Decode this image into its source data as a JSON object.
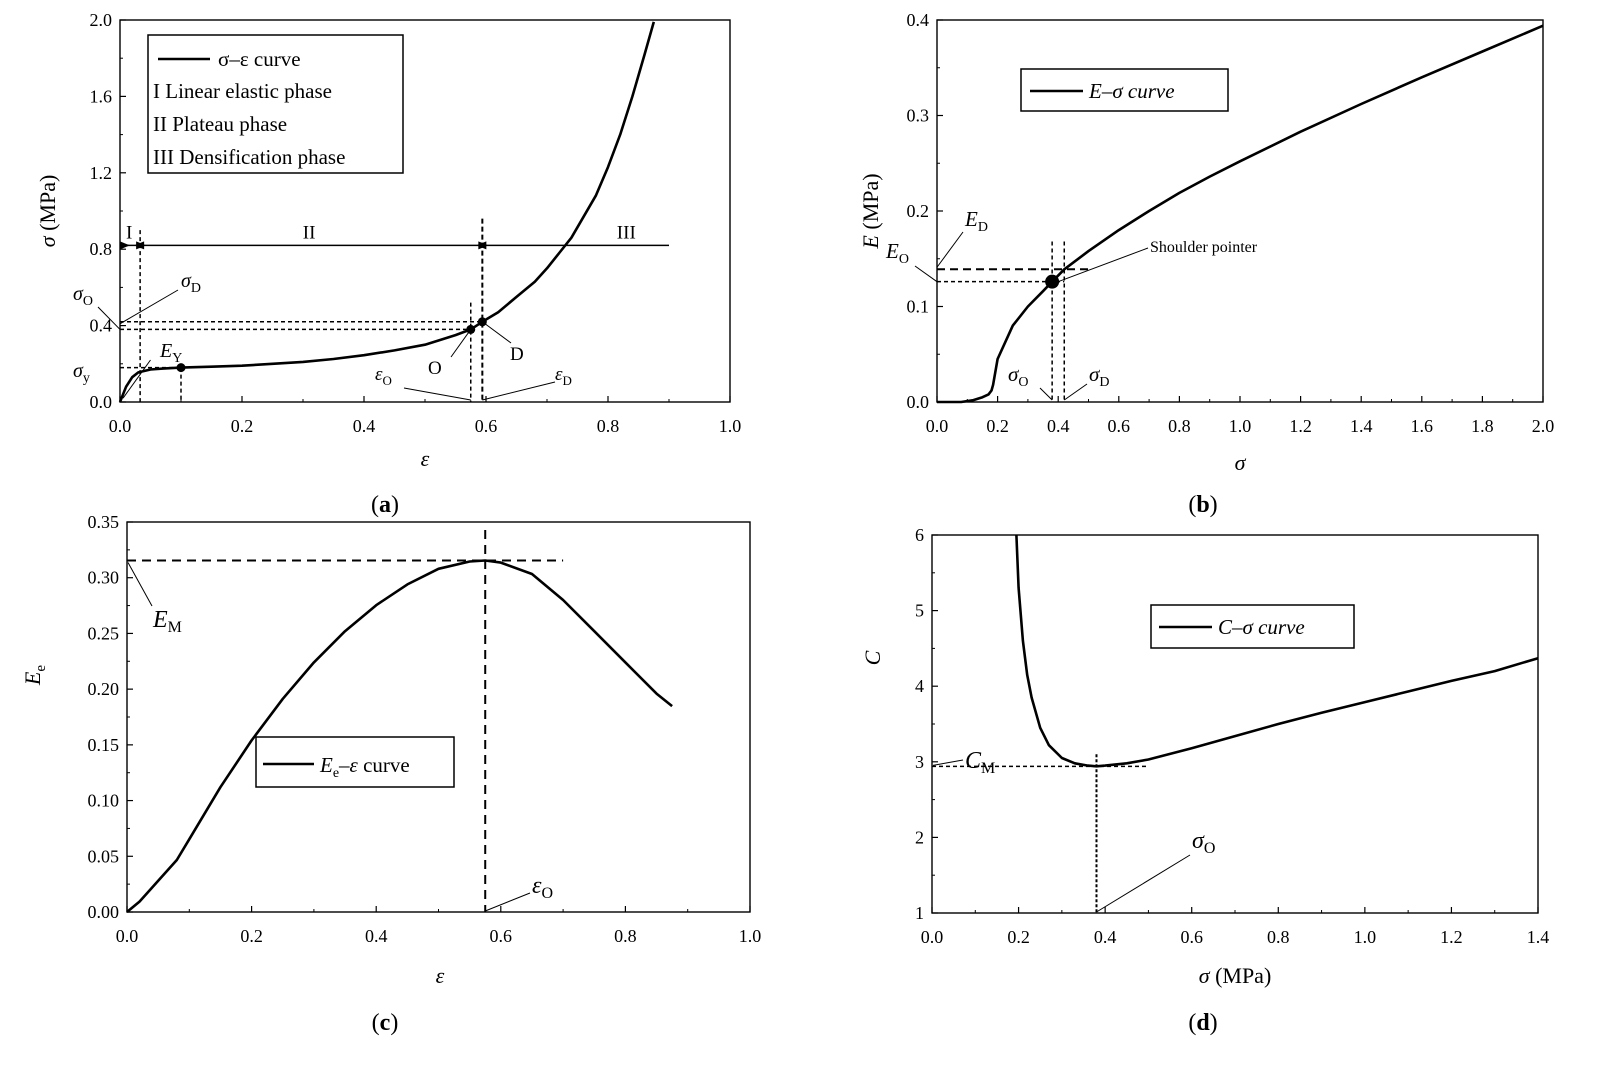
{
  "chart_data": [
    {
      "panel": "(a)",
      "type": "line",
      "xlabel": "ε",
      "ylabel": "σ (MPa)",
      "xlim": [
        0,
        1.0
      ],
      "ylim": [
        0,
        2.0
      ],
      "xticks": [
        "0.0",
        "0.2",
        "0.4",
        "0.6",
        "0.8",
        "1.0"
      ],
      "yticks": [
        "0.0",
        "0.4",
        "0.8",
        "1.2",
        "1.6",
        "2.0"
      ],
      "legend": {
        "position": "top-left",
        "entries": [
          "σ–ε curve",
          "I Linear elastic phase",
          "II Plateau phase",
          "III Densification phase"
        ]
      },
      "series": [
        {
          "name": "σ–ε curve",
          "x": [
            0,
            0.01,
            0.02,
            0.03,
            0.05,
            0.07,
            0.1,
            0.15,
            0.2,
            0.25,
            0.3,
            0.35,
            0.4,
            0.45,
            0.5,
            0.55,
            0.575,
            0.594,
            0.62,
            0.65,
            0.68,
            0.7,
            0.72,
            0.74,
            0.76,
            0.78,
            0.8,
            0.82,
            0.84,
            0.86,
            0.875
          ],
          "y": [
            0,
            0.08,
            0.13,
            0.155,
            0.17,
            0.175,
            0.18,
            0.185,
            0.19,
            0.2,
            0.21,
            0.225,
            0.245,
            0.27,
            0.3,
            0.35,
            0.38,
            0.42,
            0.47,
            0.55,
            0.63,
            0.7,
            0.78,
            0.86,
            0.97,
            1.08,
            1.23,
            1.4,
            1.6,
            1.82,
            1.99
          ]
        }
      ],
      "annotations": [
        "I",
        "II",
        "III",
        "σD",
        "σO",
        "σy",
        "EY",
        "O",
        "D",
        "εO",
        "εD"
      ]
    },
    {
      "panel": "(b)",
      "type": "line",
      "xlabel": "σ",
      "ylabel": "E (MPa)",
      "xlim": [
        0,
        2.0
      ],
      "ylim": [
        0,
        0.4
      ],
      "xticks": [
        "0.0",
        "0.2",
        "0.4",
        "0.6",
        "0.8",
        "1.0",
        "1.2",
        "1.4",
        "1.6",
        "1.8",
        "2.0"
      ],
      "yticks": [
        "0.0",
        "0.1",
        "0.2",
        "0.3",
        "0.4"
      ],
      "legend": {
        "position": "top-left",
        "entries": [
          "E–σ curve"
        ]
      },
      "series": [
        {
          "name": "E–σ curve",
          "x": [
            0,
            0.08,
            0.12,
            0.15,
            0.17,
            0.18,
            0.185,
            0.2,
            0.25,
            0.3,
            0.35,
            0.38,
            0.42,
            0.5,
            0.6,
            0.7,
            0.8,
            0.9,
            1.0,
            1.2,
            1.4,
            1.6,
            1.8,
            2.0
          ],
          "y": [
            0,
            0,
            0.002,
            0.005,
            0.008,
            0.012,
            0.018,
            0.045,
            0.08,
            0.1,
            0.116,
            0.126,
            0.139,
            0.158,
            0.18,
            0.2,
            0.219,
            0.236,
            0.252,
            0.283,
            0.312,
            0.34,
            0.367,
            0.394
          ]
        }
      ],
      "annotations": [
        "ED",
        "EO",
        "Shoulder pointer",
        "σO",
        "σD"
      ]
    },
    {
      "panel": "(c)",
      "type": "line",
      "xlabel": "ε",
      "ylabel": "Ee",
      "xlim": [
        0,
        1.0
      ],
      "ylim": [
        0,
        0.375
      ],
      "xticks": [
        "0.0",
        "0.2",
        "0.4",
        "0.6",
        "0.8",
        "1.0"
      ],
      "yticks": [
        "0.00",
        "0.05",
        "0.10",
        "0.15",
        "0.20",
        "0.25",
        "0.30",
        "0.35"
      ],
      "legend": {
        "position": "center-left",
        "entries": [
          "Ee–ε curve"
        ]
      },
      "series": [
        {
          "name": "Ee–ε curve",
          "x": [
            0,
            0.02,
            0.05,
            0.08,
            0.1,
            0.15,
            0.2,
            0.25,
            0.3,
            0.35,
            0.4,
            0.45,
            0.5,
            0.55,
            0.575,
            0.6,
            0.65,
            0.7,
            0.75,
            0.8,
            0.85,
            0.875
          ],
          "y": [
            0,
            0.01,
            0.03,
            0.05,
            0.07,
            0.12,
            0.165,
            0.205,
            0.24,
            0.27,
            0.295,
            0.315,
            0.33,
            0.337,
            0.338,
            0.336,
            0.325,
            0.3,
            0.27,
            0.24,
            0.21,
            0.198
          ]
        }
      ],
      "annotations": [
        "EM",
        "εO"
      ]
    },
    {
      "panel": "(d)",
      "type": "line",
      "xlabel": "σ (MPa)",
      "ylabel": "C",
      "xlim": [
        0,
        1.4
      ],
      "ylim": [
        1,
        6
      ],
      "xticks": [
        "0.0",
        "0.2",
        "0.4",
        "0.6",
        "0.8",
        "1.0",
        "1.2",
        "1.4"
      ],
      "yticks": [
        "1",
        "2",
        "3",
        "4",
        "5",
        "6"
      ],
      "legend": {
        "position": "center",
        "entries": [
          "C–σ curve"
        ]
      },
      "series": [
        {
          "name": "C–σ curve",
          "x": [
            0.195,
            0.2,
            0.21,
            0.22,
            0.23,
            0.25,
            0.27,
            0.3,
            0.33,
            0.36,
            0.38,
            0.4,
            0.45,
            0.5,
            0.6,
            0.7,
            0.8,
            0.9,
            1.0,
            1.1,
            1.2,
            1.3,
            1.4
          ],
          "y": [
            6.0,
            5.3,
            4.6,
            4.15,
            3.85,
            3.45,
            3.22,
            3.05,
            2.98,
            2.95,
            2.94,
            2.95,
            2.98,
            3.03,
            3.18,
            3.34,
            3.5,
            3.65,
            3.79,
            3.93,
            4.07,
            4.2,
            4.37
          ]
        }
      ],
      "annotations": [
        "CM",
        "σO"
      ]
    }
  ],
  "figure": {
    "panel_labels": [
      "(a)",
      "(b)",
      "(c)",
      "(d)"
    ],
    "panel_a": {
      "legend_line": "σ–ε curve",
      "legend_items": [
        "I Linear elastic phase",
        "II Plateau phase",
        "III Densification phase"
      ],
      "phase_labels": [
        "I",
        "II",
        "III"
      ],
      "label_sigma_D": "σD",
      "label_sigma_O": "σO",
      "label_sigma_y": "σy",
      "label_E_Y": "EY",
      "label_O": "O",
      "label_D": "D",
      "label_eps_O": "εO",
      "label_eps_D": "εD"
    },
    "panel_b": {
      "legend_line": "E–σ curve",
      "label_E_D": "ED",
      "label_E_O": "EO",
      "shoulder": "Shoulder pointer",
      "label_sigma_O": "σO",
      "label_sigma_D": "σD"
    },
    "panel_c": {
      "legend_line": "Ee–ε curve",
      "label_E_M": "EM",
      "label_eps_O": "εO"
    },
    "panel_d": {
      "legend_line": "C–σ curve",
      "label_C_M": "CM",
      "label_sigma_O": "σO"
    }
  }
}
